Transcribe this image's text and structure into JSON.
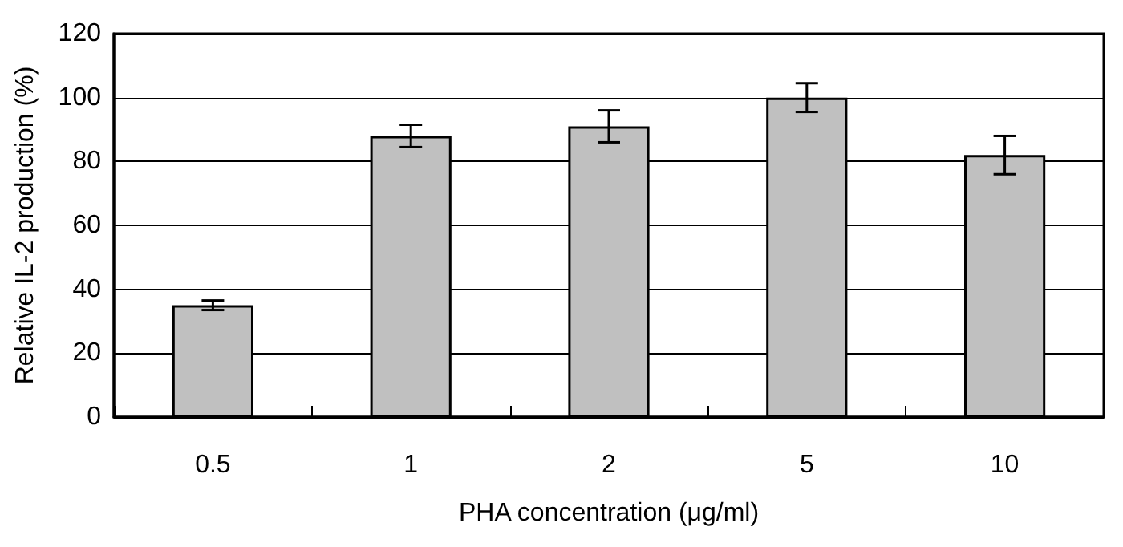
{
  "chart_data": {
    "type": "bar",
    "xlabel": "PHA concentration (μg/ml)",
    "ylabel": "Relative IL-2 production (%)",
    "categories": [
      "0.5",
      "1",
      "2",
      "5",
      "10"
    ],
    "values": [
      35,
      88,
      91,
      100,
      82
    ],
    "errors": [
      1.5,
      3.5,
      5,
      4.5,
      6
    ],
    "color": "#c0c0c0",
    "ylim": [
      0,
      120
    ],
    "yticks": [
      0,
      20,
      40,
      60,
      80,
      100,
      120
    ],
    "grid": "y"
  }
}
